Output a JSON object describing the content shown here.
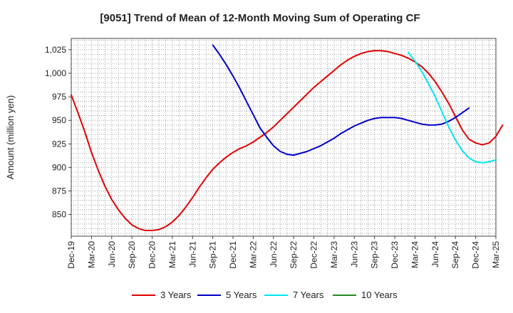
{
  "chart_data": {
    "type": "line",
    "title": "[9051]  Trend of Mean of 12-Month Moving Sum of Operating CF",
    "xlabel": "",
    "ylabel": "Amount (million yen)",
    "ylim": [
      827,
      1037
    ],
    "y_ticks": [
      850,
      875,
      900,
      925,
      950,
      975,
      1000,
      1025
    ],
    "y_tick_labels": [
      "850",
      "875",
      "900",
      "925",
      "950",
      "975",
      "1,000",
      "1,025"
    ],
    "x_tick_labels": [
      "Dec-19",
      "Mar-20",
      "Jun-20",
      "Sep-20",
      "Dec-20",
      "Mar-21",
      "Jun-21",
      "Sep-21",
      "Dec-21",
      "Mar-22",
      "Jun-22",
      "Sep-22",
      "Dec-22",
      "Mar-23",
      "Jun-23",
      "Sep-23",
      "Dec-23",
      "Mar-24",
      "Jun-24",
      "Sep-24",
      "Dec-24",
      "Mar-25"
    ],
    "x_start": "Dec-19",
    "x_months": 63,
    "grid": true,
    "legend_position": "bottom",
    "series": [
      {
        "name": "3 Years",
        "color": "#e00000",
        "start_index": 0,
        "values": [
          977,
          958,
          938,
          916,
          897,
          880,
          866,
          855,
          846,
          839,
          835,
          833,
          833,
          834,
          837,
          842,
          849,
          858,
          868,
          879,
          889,
          898,
          905,
          911,
          916,
          920,
          923,
          927,
          932,
          937,
          943,
          950,
          957,
          964,
          971,
          978,
          985,
          991,
          997,
          1003,
          1009,
          1014,
          1018,
          1021,
          1023,
          1024,
          1024,
          1023,
          1021,
          1019,
          1016,
          1012,
          1007,
          1000,
          991,
          980,
          968,
          954,
          940,
          930,
          926,
          924,
          926,
          933,
          945
        ]
      },
      {
        "name": "5 Years",
        "color": "#0000cc",
        "start_index": 21,
        "values": [
          1030,
          1020,
          1009,
          997,
          984,
          970,
          956,
          942,
          932,
          923,
          917,
          914,
          913,
          915,
          917,
          920,
          923,
          927,
          931,
          936,
          940,
          944,
          947,
          950,
          952,
          953,
          953,
          953,
          952,
          950,
          948,
          946,
          945,
          945,
          946,
          949,
          953,
          958,
          963
        ]
      },
      {
        "name": "7 Years",
        "color": "#00e5ee",
        "start_index": 50,
        "values": [
          1022,
          1013,
          1002,
          989,
          975,
          959,
          943,
          929,
          918,
          910,
          906,
          905,
          906,
          908
        ]
      },
      {
        "name": "10 Years",
        "color": "#228b22",
        "start_index": 0,
        "values": []
      }
    ]
  }
}
